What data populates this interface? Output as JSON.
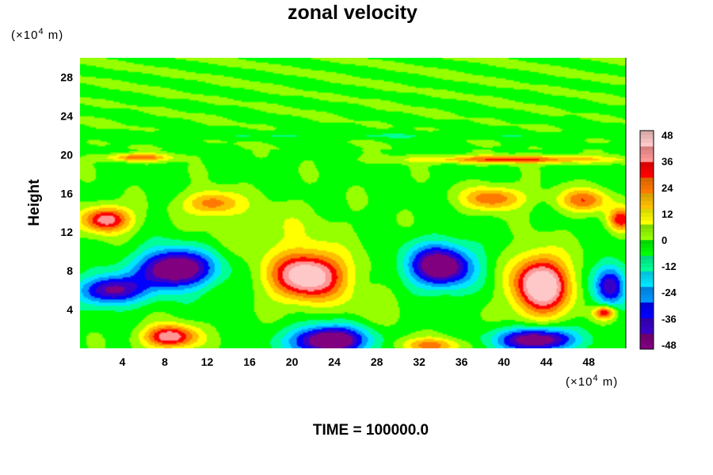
{
  "chart_data": {
    "type": "heatmap",
    "title": "zonal velocity",
    "ylabel": "Height",
    "xlabel": "",
    "x_unit_prefix": "(×10",
    "x_unit_exp": "4",
    "x_unit_suffix": " m)",
    "y_unit_prefix": "(×10",
    "y_unit_exp": "4",
    "y_unit_suffix": " m)",
    "xlim": [
      0,
      51.5
    ],
    "ylim": [
      0,
      30
    ],
    "x_ticks": [
      4,
      8,
      12,
      16,
      20,
      24,
      28,
      32,
      36,
      40,
      44,
      48
    ],
    "y_ticks": [
      4,
      8,
      12,
      16,
      20,
      24,
      28
    ],
    "colorbar": {
      "min": -50,
      "max": 50,
      "ticks": [
        48,
        36,
        24,
        12,
        0,
        -12,
        -24,
        -36,
        -48
      ],
      "colors": [
        "#800080",
        "#3a00c8",
        "#0000ff",
        "#0096ff",
        "#00e6ff",
        "#00ff96",
        "#00ff00",
        "#96ff00",
        "#ffff00",
        "#ffbe00",
        "#ff7800",
        "#ff0000",
        "#ff9696",
        "#ffc8c8"
      ]
    },
    "features": [
      {
        "x": 2.5,
        "y": 13.3,
        "sx": 2.2,
        "sy": 1.3,
        "value": 45
      },
      {
        "x": 12.5,
        "y": 15.0,
        "sx": 2.5,
        "sy": 1.2,
        "value": 28
      },
      {
        "x": 5.5,
        "y": 19.7,
        "sx": 3.0,
        "sy": 0.4,
        "value": 30
      },
      {
        "x": 41.0,
        "y": 19.5,
        "sx": 9.0,
        "sy": 0.4,
        "value": 32
      },
      {
        "x": 39.0,
        "y": 15.5,
        "sx": 2.8,
        "sy": 1.2,
        "value": 30
      },
      {
        "x": 47.5,
        "y": 15.3,
        "sx": 2.5,
        "sy": 1.2,
        "value": 28
      },
      {
        "x": 51.0,
        "y": 13.3,
        "sx": 1.2,
        "sy": 1.2,
        "value": 35
      },
      {
        "x": 21.5,
        "y": 7.5,
        "sx": 3.5,
        "sy": 2.5,
        "value": 56
      },
      {
        "x": 43.5,
        "y": 6.5,
        "sx": 2.6,
        "sy": 3.0,
        "value": 60
      },
      {
        "x": 8.5,
        "y": 1.2,
        "sx": 2.5,
        "sy": 1.2,
        "value": 45
      },
      {
        "x": 33.0,
        "y": 0.3,
        "sx": 3.0,
        "sy": 0.8,
        "value": 25
      },
      {
        "x": 49.5,
        "y": 3.7,
        "sx": 1.0,
        "sy": 0.7,
        "value": 40
      },
      {
        "x": 9.0,
        "y": 8.2,
        "sx": 3.5,
        "sy": 2.0,
        "value": -58
      },
      {
        "x": 3.0,
        "y": 6.0,
        "sx": 3.0,
        "sy": 1.5,
        "value": -45
      },
      {
        "x": 34.0,
        "y": 8.5,
        "sx": 3.0,
        "sy": 2.2,
        "value": -55
      },
      {
        "x": 23.5,
        "y": 0.8,
        "sx": 3.5,
        "sy": 1.5,
        "value": -58
      },
      {
        "x": 43.0,
        "y": 0.9,
        "sx": 3.5,
        "sy": 1.2,
        "value": -55
      },
      {
        "x": 50.0,
        "y": 6.5,
        "sx": 1.5,
        "sy": 2.2,
        "value": -40
      },
      {
        "x": 25.0,
        "y": 22.0,
        "sx": 26.0,
        "sy": 0.35,
        "value": -15
      },
      {
        "x": 18.0,
        "y": 12.5,
        "sx": 6.0,
        "sy": 2.5,
        "value": 8
      },
      {
        "x": 28.0,
        "y": 4.5,
        "sx": 3.0,
        "sy": 2.0,
        "value": 6
      }
    ]
  },
  "footer": {
    "time_label": "TIME = 100000.0"
  }
}
